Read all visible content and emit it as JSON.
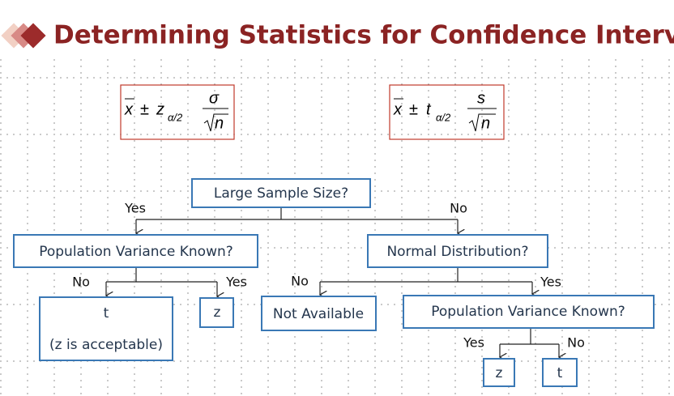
{
  "header": {
    "title": "Determining Statistics for Confidence Intervals"
  },
  "formulas": [
    {
      "mean": "x",
      "pm": "±",
      "stat": "z",
      "sub": "α/2",
      "num": "σ",
      "den": "n"
    },
    {
      "mean": "x",
      "pm": "±",
      "stat": "t",
      "sub": "α/2",
      "num": "s",
      "den": "n"
    }
  ],
  "nodes": [
    {
      "label": "Large Sample Size?"
    },
    {
      "label": "Population Variance Known?"
    },
    {
      "label": "Normal Distribution?"
    },
    {
      "label": "t",
      "note": "(z is acceptable)"
    },
    {
      "label": "z"
    },
    {
      "label": "Not Available"
    },
    {
      "label": "Population Variance Known?"
    },
    {
      "label": "z"
    },
    {
      "label": "t"
    }
  ],
  "edges": [
    {
      "label": "Yes"
    },
    {
      "label": "No"
    },
    {
      "label": "No"
    },
    {
      "label": "Yes"
    },
    {
      "label": "No"
    },
    {
      "label": "Yes"
    },
    {
      "label": "Yes"
    },
    {
      "label": "No"
    }
  ]
}
